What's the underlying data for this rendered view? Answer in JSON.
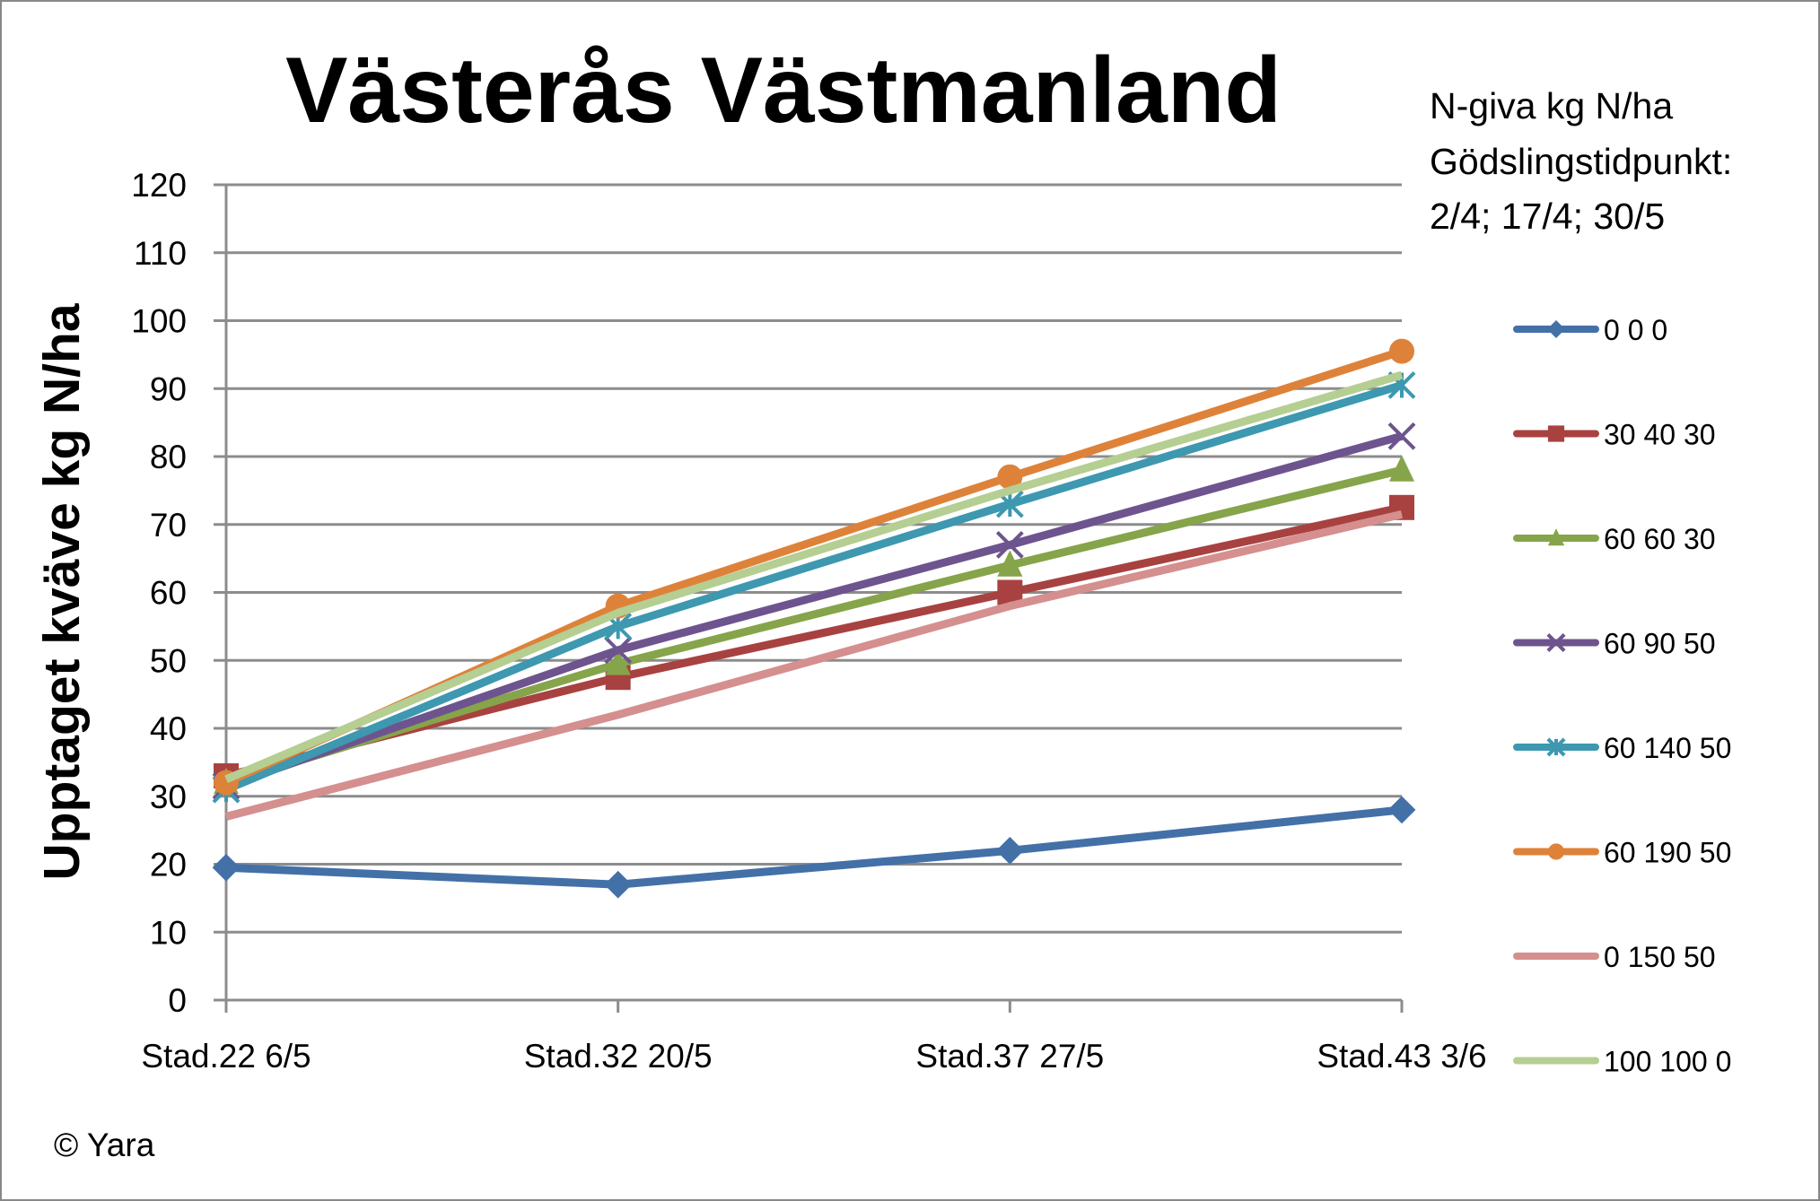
{
  "chart_data": {
    "type": "line",
    "title": "Västerås Västmanland",
    "ylabel": "Upptaget kväve kg N/ha",
    "xlabel": "",
    "categories": [
      "Stad.22 6/5",
      "Stad.32 20/5",
      "Stad.37 27/5",
      "Stad.43 3/6"
    ],
    "ylim": [
      0,
      120
    ],
    "yticks": [
      0,
      10,
      20,
      30,
      40,
      50,
      60,
      70,
      80,
      90,
      100,
      110,
      120
    ],
    "grid": true,
    "legend_placement": "right",
    "legend_title": [
      "N-giva kg N/ha",
      "Gödslingstidpunkt:",
      "2/4; 17/4; 30/5"
    ],
    "series": [
      {
        "name": "0 0 0",
        "color": "#4470A8",
        "marker": "diamond",
        "values": [
          19.5,
          17,
          22,
          28
        ]
      },
      {
        "name": "30 40 30",
        "color": "#A84240",
        "marker": "square",
        "values": [
          33,
          47.5,
          60,
          72.5
        ]
      },
      {
        "name": "60 60 30",
        "color": "#86A44A",
        "marker": "triangle",
        "values": [
          32,
          49.5,
          64,
          78
        ]
      },
      {
        "name": "60 90 50",
        "color": "#6E548E",
        "marker": "x",
        "values": [
          31.5,
          51.5,
          67,
          83
        ]
      },
      {
        "name": "60 140 50",
        "color": "#3D98B0",
        "marker": "star",
        "values": [
          31,
          55,
          73,
          90.5
        ]
      },
      {
        "name": "60 190 50",
        "color": "#DE823A",
        "marker": "circle",
        "values": [
          32,
          58,
          77,
          95.5
        ]
      },
      {
        "name": "0 150 50",
        "color": "#D48F8E",
        "marker": "none",
        "values": [
          27,
          42,
          58,
          71.5
        ]
      },
      {
        "name": "100 100 0",
        "color": "#B5CE92",
        "marker": "none",
        "values": [
          32.5,
          57,
          75,
          92
        ]
      }
    ]
  },
  "footer": {
    "copyright": "© Yara"
  }
}
